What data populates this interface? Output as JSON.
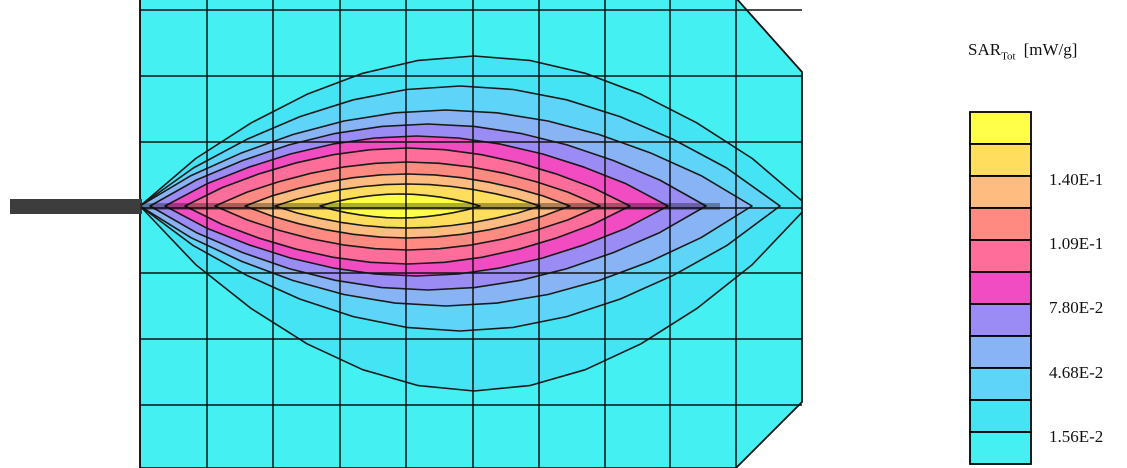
{
  "chart_data": {
    "type": "heatmap",
    "title": "",
    "legend": {
      "title_main": "SAR",
      "title_sub": "Tot",
      "unit": "[mW/g]",
      "placement": "right",
      "levels": [
        {
          "color": "#44F0F2"
        },
        {
          "color": "#44E4F4"
        },
        {
          "color": "#5ED4F8"
        },
        {
          "color": "#88B4F6"
        },
        {
          "color": "#9A8CF4"
        },
        {
          "color": "#F24CC2"
        },
        {
          "color": "#FF6E9A"
        },
        {
          "color": "#FF8A82"
        },
        {
          "color": "#FFBC80"
        },
        {
          "color": "#FFDE5E"
        },
        {
          "color": "#FFFF4A"
        }
      ],
      "tick_labels": [
        "1.40E-1",
        "1.09E-1",
        "7.80E-2",
        "4.68E-2",
        "1.56E-2"
      ]
    },
    "grid": true,
    "feed_line": true
  }
}
